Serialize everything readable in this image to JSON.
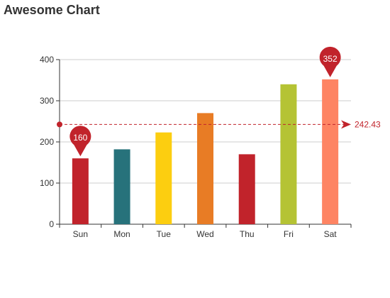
{
  "chart_data": {
    "type": "bar",
    "title": "Awesome Chart",
    "xlabel": "",
    "ylabel": "",
    "categories": [
      "Sun",
      "Mon",
      "Tue",
      "Wed",
      "Thu",
      "Fri",
      "Sat"
    ],
    "values": [
      160,
      182,
      223,
      270,
      170,
      340,
      352
    ],
    "bar_colors": [
      "#c1232b",
      "#27727b",
      "#fcce10",
      "#e87c25",
      "#c1232b",
      "#b5c334",
      "#fe8463"
    ],
    "ylim": [
      0,
      400
    ],
    "yticks": [
      0,
      100,
      200,
      300,
      400
    ],
    "grid": true,
    "mark_points": [
      {
        "category": "Sun",
        "value": 160,
        "label": "160",
        "kind": "min"
      },
      {
        "category": "Sat",
        "value": 352,
        "label": "352",
        "kind": "max"
      }
    ],
    "mark_line": {
      "value": 242.43,
      "label": "242.43",
      "kind": "average",
      "color": "#c1232b"
    }
  }
}
